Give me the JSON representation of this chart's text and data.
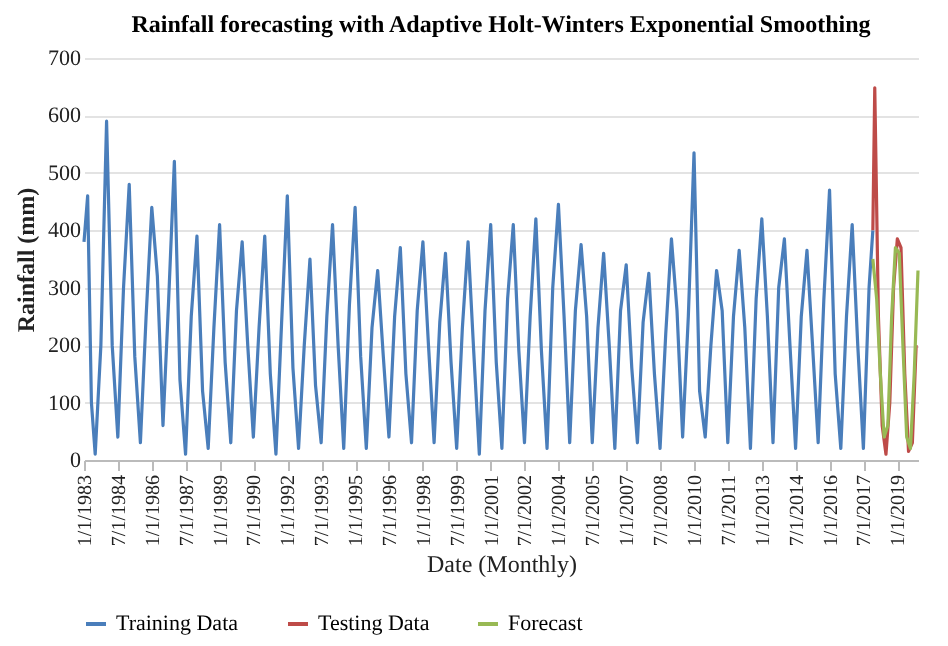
{
  "chart_data": {
    "type": "line",
    "title": "Rainfall forecasting with Adaptive Holt-Winters Exponential Smoothing",
    "xlabel": "Date (Monthly)",
    "ylabel": "Rainfall (mm)",
    "xlim": [
      "1983-01",
      "2019-12"
    ],
    "xticks": [
      {
        "value": "1983-01",
        "label": "1/1/1983"
      },
      {
        "value": "1984-07",
        "label": "7/1/1984"
      },
      {
        "value": "1986-01",
        "label": "1/1/1986"
      },
      {
        "value": "1987-07",
        "label": "7/1/1987"
      },
      {
        "value": "1989-01",
        "label": "1/1/1989"
      },
      {
        "value": "1990-07",
        "label": "7/1/1990"
      },
      {
        "value": "1992-01",
        "label": "1/1/1992"
      },
      {
        "value": "1993-07",
        "label": "7/1/1993"
      },
      {
        "value": "1995-01",
        "label": "1/1/1995"
      },
      {
        "value": "1996-07",
        "label": "7/1/1996"
      },
      {
        "value": "1998-01",
        "label": "1/1/1998"
      },
      {
        "value": "1999-07",
        "label": "7/1/1999"
      },
      {
        "value": "2001-01",
        "label": "1/1/2001"
      },
      {
        "value": "2002-07",
        "label": "7/1/2002"
      },
      {
        "value": "2004-01",
        "label": "1/1/2004"
      },
      {
        "value": "2005-07",
        "label": "7/1/2005"
      },
      {
        "value": "2007-01",
        "label": "1/1/2007"
      },
      {
        "value": "2008-07",
        "label": "7/1/2008"
      },
      {
        "value": "2010-01",
        "label": "1/1/2010"
      },
      {
        "value": "2011-07",
        "label": "7/1/2011"
      },
      {
        "value": "2013-01",
        "label": "1/1/2013"
      },
      {
        "value": "2014-07",
        "label": "7/1/2014"
      },
      {
        "value": "2016-01",
        "label": "1/1/2016"
      },
      {
        "value": "2017-07",
        "label": "7/1/2017"
      },
      {
        "value": "2019-01",
        "label": "1/1/2019"
      }
    ],
    "ylim": [
      0,
      700
    ],
    "yticks": [
      0,
      100,
      200,
      300,
      400,
      500,
      600,
      700
    ],
    "grid": "y",
    "legend": "bottom",
    "line_style": "solid",
    "series": [
      {
        "name": "Training Data",
        "color": "#4a7ebb",
        "x": [
          "1983-01",
          "1983-03",
          "1983-05",
          "1983-07",
          "1983-10",
          "1984-01",
          "1984-04",
          "1984-07",
          "1984-10",
          "1985-01",
          "1985-04",
          "1985-07",
          "1985-10",
          "1986-01",
          "1986-04",
          "1986-07",
          "1986-10",
          "1987-01",
          "1987-04",
          "1987-07",
          "1987-10",
          "1988-01",
          "1988-04",
          "1988-07",
          "1988-10",
          "1989-01",
          "1989-04",
          "1989-07",
          "1989-10",
          "1990-01",
          "1990-04",
          "1990-07",
          "1990-10",
          "1991-01",
          "1991-04",
          "1991-07",
          "1991-10",
          "1992-01",
          "1992-04",
          "1992-07",
          "1992-10",
          "1993-01",
          "1993-04",
          "1993-07",
          "1993-10",
          "1994-01",
          "1994-04",
          "1994-07",
          "1994-10",
          "1995-01",
          "1995-04",
          "1995-07",
          "1995-10",
          "1996-01",
          "1996-04",
          "1996-07",
          "1996-10",
          "1997-01",
          "1997-04",
          "1997-07",
          "1997-10",
          "1998-01",
          "1998-04",
          "1998-07",
          "1998-10",
          "1999-01",
          "1999-04",
          "1999-07",
          "1999-10",
          "2000-01",
          "2000-04",
          "2000-07",
          "2000-10",
          "2001-01",
          "2001-04",
          "2001-07",
          "2001-10",
          "2002-01",
          "2002-04",
          "2002-07",
          "2002-10",
          "2003-01",
          "2003-04",
          "2003-07",
          "2003-10",
          "2004-01",
          "2004-04",
          "2004-07",
          "2004-10",
          "2005-01",
          "2005-04",
          "2005-07",
          "2005-10",
          "2006-01",
          "2006-04",
          "2006-07",
          "2006-10",
          "2007-01",
          "2007-04",
          "2007-07",
          "2007-10",
          "2008-01",
          "2008-04",
          "2008-07",
          "2008-10",
          "2009-01",
          "2009-04",
          "2009-07",
          "2009-10",
          "2010-01",
          "2010-04",
          "2010-07",
          "2010-10",
          "2011-01",
          "2011-04",
          "2011-07",
          "2011-10",
          "2012-01",
          "2012-04",
          "2012-07",
          "2012-10",
          "2013-01",
          "2013-04",
          "2013-07",
          "2013-10",
          "2014-01",
          "2014-04",
          "2014-07",
          "2014-10",
          "2015-01",
          "2015-04",
          "2015-07",
          "2015-10",
          "2016-01",
          "2016-04",
          "2016-07",
          "2016-10",
          "2017-01",
          "2017-04",
          "2017-07",
          "2017-10",
          "2017-12"
        ],
        "values": [
          380,
          460,
          100,
          10,
          200,
          590,
          200,
          40,
          300,
          480,
          180,
          30,
          250,
          440,
          320,
          60,
          280,
          520,
          140,
          10,
          250,
          390,
          120,
          20,
          230,
          410,
          170,
          30,
          260,
          380,
          200,
          40,
          230,
          390,
          150,
          10,
          240,
          460,
          160,
          20,
          200,
          350,
          130,
          30,
          250,
          410,
          200,
          20,
          270,
          440,
          180,
          20,
          230,
          330,
          180,
          40,
          250,
          370,
          150,
          30,
          260,
          380,
          200,
          30,
          240,
          360,
          170,
          20,
          230,
          380,
          190,
          10,
          260,
          410,
          170,
          20,
          280,
          410,
          190,
          30,
          250,
          420,
          190,
          20,
          300,
          445,
          250,
          30,
          260,
          375,
          250,
          30,
          230,
          360,
          200,
          20,
          260,
          340,
          160,
          30,
          240,
          325,
          150,
          20,
          220,
          385,
          260,
          40,
          250,
          535,
          120,
          40,
          200,
          330,
          260,
          30,
          250,
          365,
          230,
          20,
          280,
          420,
          250,
          30,
          300,
          385,
          200,
          20,
          250,
          365,
          200,
          30,
          280,
          470,
          150,
          20,
          250,
          410,
          200,
          20,
          300,
          400
        ]
      },
      {
        "name": "Testing Data",
        "color": "#be4b48",
        "x": [
          "2017-12",
          "2018-01",
          "2018-03",
          "2018-05",
          "2018-07",
          "2018-09",
          "2018-11",
          "2019-01",
          "2019-03",
          "2019-05",
          "2019-07",
          "2019-09",
          "2019-11"
        ],
        "values": [
          400,
          648,
          250,
          60,
          10,
          100,
          300,
          385,
          370,
          150,
          15,
          30,
          200
        ]
      },
      {
        "name": "Forecast",
        "color": "#98b954",
        "x": [
          "2017-12",
          "2018-02",
          "2018-04",
          "2018-06",
          "2018-08",
          "2018-10",
          "2018-12",
          "2019-02",
          "2019-04",
          "2019-06",
          "2019-08",
          "2019-10",
          "2019-12"
        ],
        "values": [
          350,
          280,
          150,
          40,
          60,
          250,
          370,
          360,
          200,
          40,
          20,
          150,
          330
        ]
      }
    ]
  }
}
